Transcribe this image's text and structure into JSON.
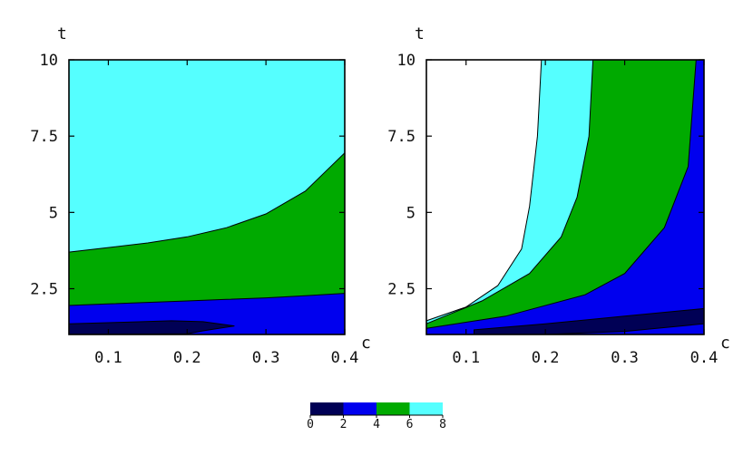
{
  "chart_data": [
    {
      "type": "contour",
      "xlabel": "c",
      "ylabel": "t",
      "xlim": [
        0.05,
        0.4
      ],
      "ylim": [
        1,
        10
      ],
      "xticks": [
        "0.1",
        "0.2",
        "0.3",
        "0.4"
      ],
      "yticks": [
        "2.5",
        "5",
        "7.5",
        "10"
      ],
      "contour_levels": [
        {
          "level": 2,
          "curve": [
            [
              0.05,
              1.35
            ],
            [
              0.12,
              1.4
            ],
            [
              0.18,
              1.45
            ],
            [
              0.22,
              1.42
            ],
            [
              0.26,
              1.28
            ],
            [
              0.22,
              1.12
            ],
            [
              0.2,
              1.02
            ]
          ]
        },
        {
          "level": 4,
          "curve": [
            [
              0.05,
              1.95
            ],
            [
              0.1,
              2.0
            ],
            [
              0.15,
              2.05
            ],
            [
              0.2,
              2.1
            ],
            [
              0.25,
              2.15
            ],
            [
              0.3,
              2.2
            ],
            [
              0.35,
              2.27
            ],
            [
              0.4,
              2.35
            ]
          ]
        },
        {
          "level": 6,
          "curve": [
            [
              0.05,
              3.7
            ],
            [
              0.1,
              3.85
            ],
            [
              0.15,
              4.0
            ],
            [
              0.2,
              4.2
            ],
            [
              0.25,
              4.5
            ],
            [
              0.3,
              4.95
            ],
            [
              0.35,
              5.7
            ],
            [
              0.4,
              6.95
            ]
          ]
        }
      ],
      "regions": [
        {
          "range": "0-2",
          "color": "#000055"
        },
        {
          "range": "2-4",
          "color": "#0000ee"
        },
        {
          "range": "4-6",
          "color": "#00aa00"
        },
        {
          "range": "6-8",
          "color": "#55ffff"
        }
      ]
    },
    {
      "type": "contour",
      "xlabel": "c",
      "ylabel": "t",
      "xlim": [
        0.05,
        0.4
      ],
      "ylim": [
        1,
        10
      ],
      "xticks": [
        "0.1",
        "0.2",
        "0.3",
        "0.4"
      ],
      "yticks": [
        "2.5",
        "5",
        "7.5",
        "10"
      ],
      "contour_levels": [
        {
          "level": 2,
          "curve": [
            [
              0.11,
              1.15
            ],
            [
              0.2,
              1.35
            ],
            [
              0.3,
              1.6
            ],
            [
              0.4,
              1.85
            ]
          ]
        },
        {
          "level": 4,
          "curve": [
            [
              0.05,
              1.2
            ],
            [
              0.15,
              1.6
            ],
            [
              0.25,
              2.3
            ],
            [
              0.3,
              3.0
            ],
            [
              0.35,
              4.5
            ],
            [
              0.38,
              6.5
            ],
            [
              0.39,
              10
            ]
          ]
        },
        {
          "level": 6,
          "curve": [
            [
              0.05,
              1.35
            ],
            [
              0.12,
              2.1
            ],
            [
              0.18,
              3.0
            ],
            [
              0.22,
              4.2
            ],
            [
              0.24,
              5.5
            ],
            [
              0.255,
              7.5
            ],
            [
              0.26,
              10
            ]
          ]
        },
        {
          "level": 8,
          "curve": [
            [
              0.05,
              1.45
            ],
            [
              0.1,
              1.9
            ],
            [
              0.14,
              2.6
            ],
            [
              0.17,
              3.8
            ],
            [
              0.18,
              5.2
            ],
            [
              0.19,
              7.5
            ],
            [
              0.195,
              10
            ]
          ]
        }
      ],
      "regions": [
        {
          "range": "0-2",
          "color": "#000055"
        },
        {
          "range": "2-4",
          "color": "#0000ee"
        },
        {
          "range": "4-6",
          "color": "#00aa00"
        },
        {
          "range": "6-8",
          "color": "#55ffff"
        },
        {
          "range": "8+",
          "color": "#ffffff"
        }
      ]
    }
  ],
  "colorbar": {
    "ticks": [
      "0",
      "2",
      "4",
      "6",
      "8"
    ],
    "colors": [
      "#000055",
      "#0000ee",
      "#00aa00",
      "#55ffff"
    ]
  }
}
